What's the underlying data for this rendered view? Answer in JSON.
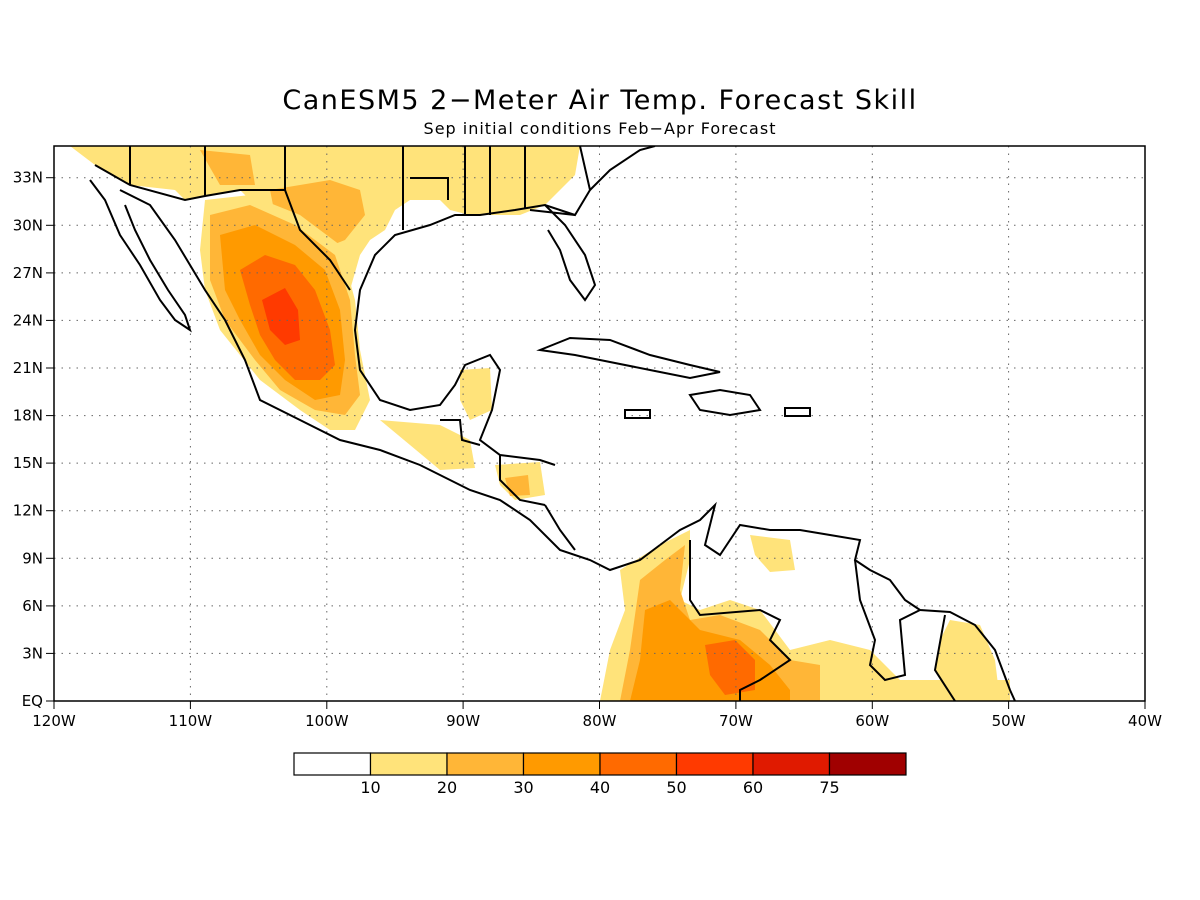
{
  "title": "CanESM5 2−Meter Air Temp. Forecast Skill",
  "subtitle": "Sep initial conditions  Feb−Apr Forecast",
  "map": {
    "lon_range": [
      -120,
      -40
    ],
    "lat_range": [
      0,
      35
    ],
    "lon_labels": [
      "120W",
      "110W",
      "100W",
      "90W",
      "80W",
      "70W",
      "60W",
      "50W",
      "40W"
    ],
    "lat_labels": [
      "EQ",
      "3N",
      "6N",
      "9N",
      "12N",
      "15N",
      "18N",
      "21N",
      "24N",
      "27N",
      "30N",
      "33N"
    ],
    "grid": "dotted"
  },
  "colorbar": {
    "labels": [
      "10",
      "20",
      "30",
      "40",
      "50",
      "60",
      "75"
    ],
    "colors": [
      "#ffffff",
      "#ffe37a",
      "#ffb637",
      "#ff9a00",
      "#ff6a00",
      "#ff3a00",
      "#e01a00",
      "#a00000"
    ]
  }
}
